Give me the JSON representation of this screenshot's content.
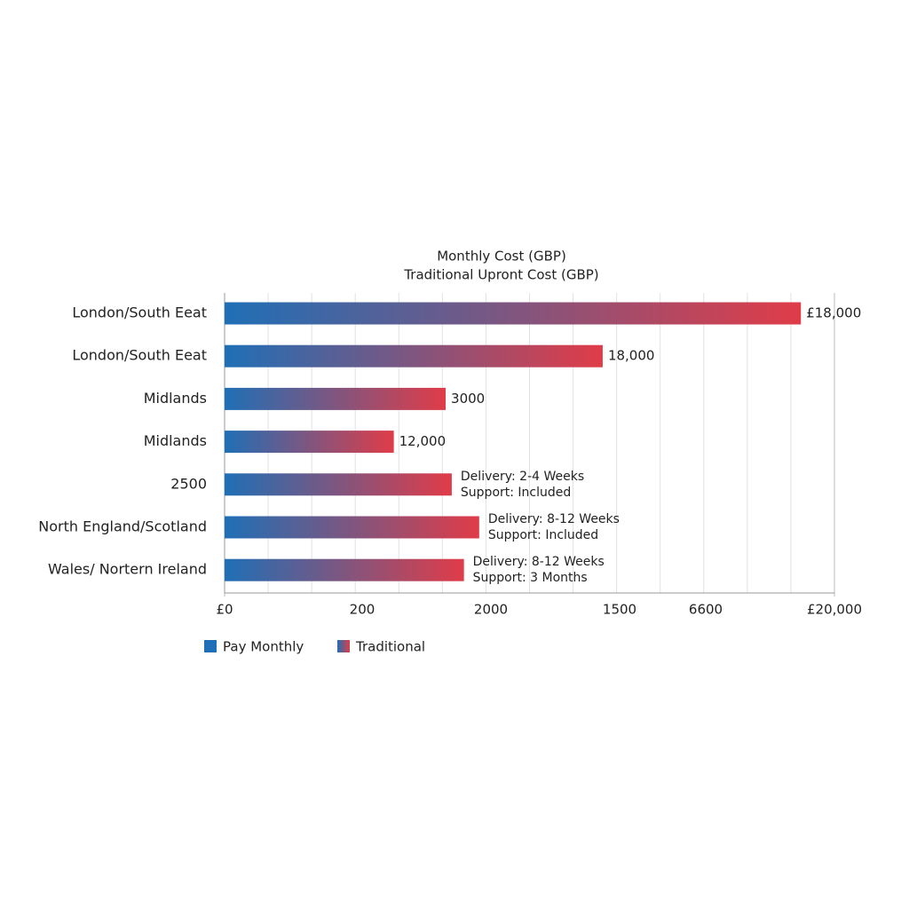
{
  "chart_data": {
    "type": "bar",
    "orientation": "horizontal",
    "title_lines": [
      "Monthly Cost (GBP)",
      "Traditional Upront Cost (GBP)"
    ],
    "categories": [
      "London/South Eeat",
      "London/South Eeat",
      "Midlands",
      "Midlands",
      "2500",
      "North England/Scotland",
      "Wales/ Nortern Ireland"
    ],
    "values": [
      18900,
      12400,
      7250,
      5550,
      7450,
      8350,
      7850
    ],
    "bar_labels": [
      [
        "£18,000"
      ],
      [
        "18,000"
      ],
      [
        "3000"
      ],
      [
        "12,000"
      ],
      [
        "Delivery: 2-4 Weeks",
        "Support: Included"
      ],
      [
        "Delivery: 8-12 Weeks",
        "Support: Included"
      ],
      [
        "Delivery: 8-12 Weeks",
        "Support: 3 Months"
      ]
    ],
    "xlim": [
      0,
      20000
    ],
    "xticks": [
      {
        "value": 0,
        "label": "£0"
      },
      {
        "value": 20000,
        "label": "£20,000"
      }
    ],
    "extra_axis_labels": [
      "200",
      "2000",
      "1500",
      "6600"
    ],
    "legend": [
      {
        "name": "Pay Monthly",
        "color": "#1f6fb6"
      },
      {
        "name": "Traditional",
        "color": "#e03c48"
      }
    ],
    "grid": true
  }
}
